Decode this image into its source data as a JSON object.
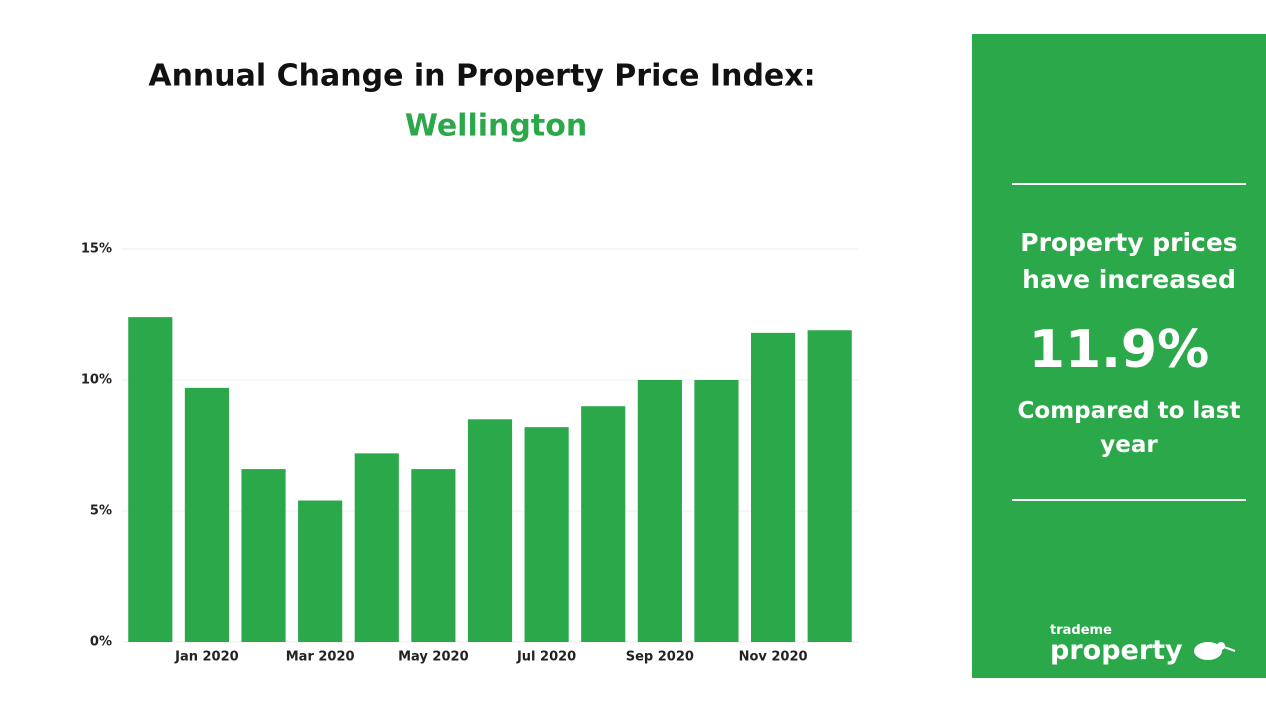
{
  "chart_data": {
    "type": "bar",
    "title": "Annual Change in Property Price Index:",
    "subtitle": "Wellington",
    "categories": [
      null,
      "Jan 2020",
      null,
      "Mar 2020",
      null,
      "May 2020",
      null,
      "Jul 2020",
      null,
      "Sep 2020",
      null,
      "Nov 2020",
      null
    ],
    "values": [
      12.4,
      9.7,
      6.6,
      5.4,
      7.2,
      6.6,
      8.5,
      8.2,
      9.0,
      10.0,
      10.0,
      11.8,
      11.9
    ],
    "color": "#2ba84a",
    "ylim": [
      0,
      15
    ],
    "yticks": [
      {
        "value": 0,
        "label": "0%"
      },
      {
        "value": 5,
        "label": "5%"
      },
      {
        "value": 10,
        "label": "10%"
      },
      {
        "value": 15,
        "label": "15%"
      }
    ],
    "grid": true
  },
  "panel": {
    "headline": "Property prices have increased",
    "figure": "11.9%",
    "footnote": "Compared to last year",
    "logo": {
      "small": "trademe",
      "big": "property"
    }
  }
}
